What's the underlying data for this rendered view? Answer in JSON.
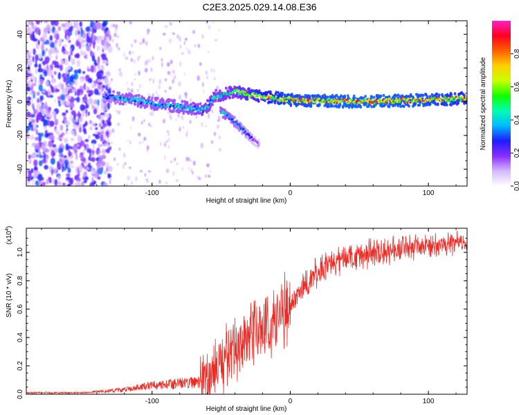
{
  "title": "C2E3.2025.029.14.08.E36",
  "chart_data": [
    {
      "type": "heatmap",
      "xlabel": "Height of straight line (km)",
      "ylabel": "Frequency (Hz)",
      "xlim": [
        -191,
        128
      ],
      "ylim": [
        -50,
        48
      ],
      "xticks": [
        -100,
        0,
        100
      ],
      "xtick_labels": [
        "-100",
        "0",
        "100"
      ],
      "yticks": [
        -40,
        -20,
        0,
        20,
        40
      ],
      "ytick_labels": [
        "-40",
        "-20",
        "0",
        "20",
        "40"
      ],
      "colorbar": {
        "label": "Normalized spectral amplitude",
        "range": [
          0,
          1
        ],
        "ticks": [
          0,
          0.2,
          0.4,
          0.6,
          0.8
        ],
        "tick_labels": [
          "0.0",
          "0.2",
          "0.4",
          "0.6",
          "0.8"
        ],
        "colors": [
          "#ffffff",
          "#d6b8ff",
          "#8a2cff",
          "#1c1cff",
          "#00b8ff",
          "#00ffb0",
          "#10ff00",
          "#c8ff00",
          "#ffd000",
          "#ff6000",
          "#ff0020",
          "#ff20c8"
        ]
      },
      "main_trace": [
        {
          "x": -135,
          "y": 3,
          "amp": 0.35
        },
        {
          "x": -120,
          "y": 2,
          "amp": 0.45
        },
        {
          "x": -100,
          "y": -1,
          "amp": 0.45
        },
        {
          "x": -80,
          "y": -3,
          "amp": 0.45
        },
        {
          "x": -62,
          "y": -5,
          "amp": 0.5
        },
        {
          "x": -55,
          "y": 3,
          "amp": 0.5
        },
        {
          "x": -40,
          "y": 6,
          "amp": 0.55
        },
        {
          "x": -20,
          "y": 3,
          "amp": 0.75
        },
        {
          "x": 0,
          "y": 1,
          "amp": 0.85
        },
        {
          "x": 50,
          "y": 0,
          "amp": 0.9
        },
        {
          "x": 100,
          "y": 1,
          "amp": 0.85
        },
        {
          "x": 128,
          "y": 2,
          "amp": 0.8
        }
      ],
      "branch_trace": [
        {
          "x": -50,
          "y": -6,
          "amp": 0.45
        },
        {
          "x": -40,
          "y": -12,
          "amp": 0.4
        },
        {
          "x": -30,
          "y": -20,
          "amp": 0.3
        },
        {
          "x": -22,
          "y": -26,
          "amp": 0.15
        }
      ],
      "noise_region": {
        "x": [
          -191,
          -130
        ],
        "y": [
          -50,
          48
        ]
      }
    },
    {
      "type": "line",
      "xlabel": "Height of straight line (km)",
      "ylabel": "SNR (10 * v/v)",
      "y_multiplier_label": "(x10",
      "y_multiplier_exponent": "4",
      "xlim": [
        -191,
        128
      ],
      "ylim": [
        0,
        1.17
      ],
      "xticks": [
        -100,
        0,
        100
      ],
      "xtick_labels": [
        "-100",
        "0",
        "100"
      ],
      "yticks": [
        0,
        0.2,
        0.4,
        0.6,
        0.8,
        1.0
      ],
      "ytick_labels": [
        "0.0",
        "0.2",
        "0.4",
        "0.6",
        "0.8",
        "1.0"
      ],
      "series_color": "#ee2a24",
      "envelope": [
        {
          "x": -191,
          "y": 0.01
        },
        {
          "x": -150,
          "y": 0.01
        },
        {
          "x": -120,
          "y": 0.03
        },
        {
          "x": -100,
          "y": 0.06
        },
        {
          "x": -80,
          "y": 0.07
        },
        {
          "x": -60,
          "y": 0.09
        },
        {
          "x": -50,
          "y": 0.2
        },
        {
          "x": -40,
          "y": 0.3
        },
        {
          "x": -30,
          "y": 0.38
        },
        {
          "x": -20,
          "y": 0.44
        },
        {
          "x": -10,
          "y": 0.5
        },
        {
          "x": 0,
          "y": 0.6
        },
        {
          "x": 10,
          "y": 0.75
        },
        {
          "x": 20,
          "y": 0.86
        },
        {
          "x": 30,
          "y": 0.92
        },
        {
          "x": 50,
          "y": 0.97
        },
        {
          "x": 75,
          "y": 1.01
        },
        {
          "x": 100,
          "y": 1.04
        },
        {
          "x": 128,
          "y": 1.06
        }
      ]
    }
  ]
}
